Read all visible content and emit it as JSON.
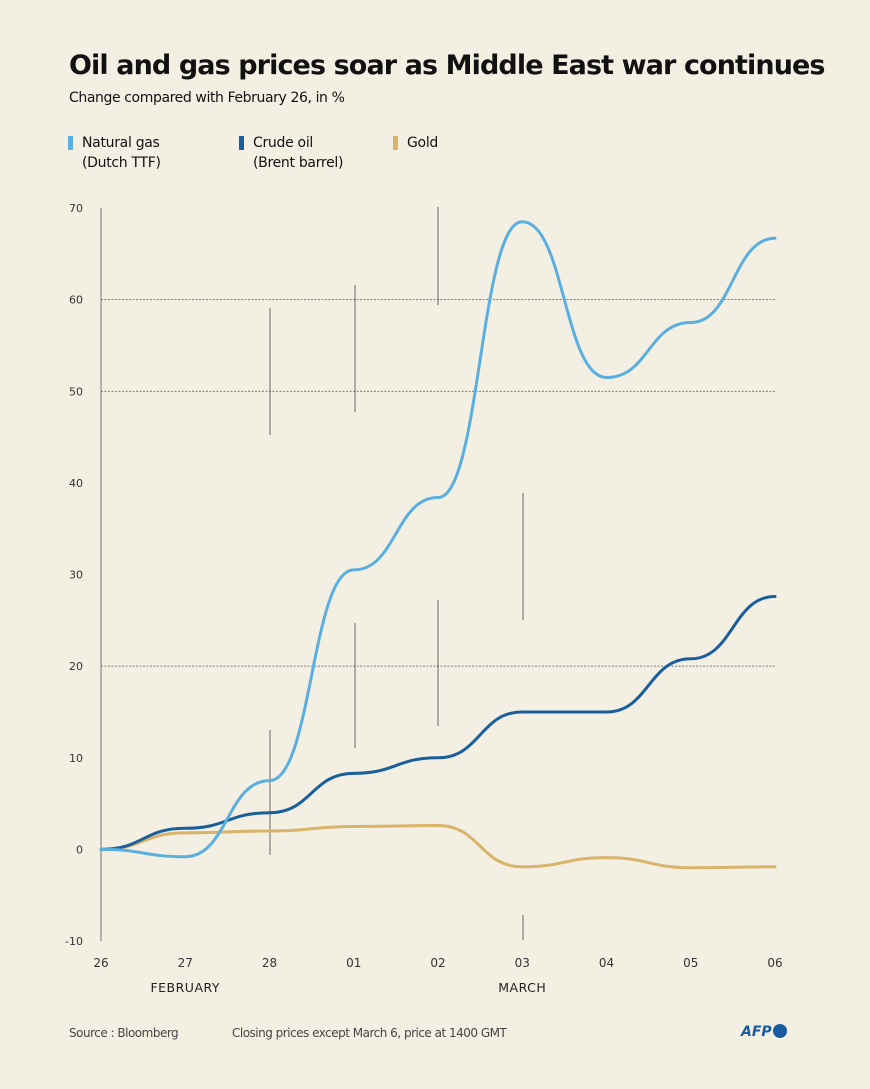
{
  "header": {
    "title": "Oil and gas prices soar as Middle East war continues",
    "subtitle": "Change compared with February 26, in %"
  },
  "footer": {
    "source": "Source : Bloomberg",
    "note": "Closing prices except March 6, price at 1400 GMT",
    "logo": "AFP"
  },
  "chart_data": {
    "type": "line",
    "title": "Oil and gas prices soar as Middle East war continues",
    "subtitle": "Change compared with February 26, in %",
    "x": [
      "26",
      "27",
      "28",
      "01",
      "02",
      "03",
      "04",
      "05",
      "06"
    ],
    "month_labels": [
      {
        "label": "FEBRUARY",
        "at": "27"
      },
      {
        "label": "MARCH",
        "at": "03"
      }
    ],
    "ylim": [
      -10,
      70
    ],
    "yticks": [
      -10,
      0,
      10,
      20,
      30,
      40,
      50,
      60,
      70
    ],
    "gridlines": [
      20,
      50,
      60
    ],
    "legend_position": "top-left",
    "series": [
      {
        "name": "Natural gas (Dutch TTF)",
        "legend_lines": [
          "Natural gas",
          "(Dutch TTF)"
        ],
        "color": "#5aafe0",
        "values": [
          0,
          -0.8,
          7.5,
          30.5,
          38.4,
          68.5,
          51.5,
          57.5,
          66.7
        ]
      },
      {
        "name": "Crude oil (Brent barrel)",
        "legend_lines": [
          "Crude oil",
          "(Brent barrel)"
        ],
        "color": "#1a5e9c",
        "values": [
          0,
          2.3,
          4,
          8.3,
          10,
          15,
          15,
          20.8,
          27.6
        ]
      },
      {
        "name": "Gold",
        "legend_lines": [
          "Gold",
          ""
        ],
        "color": "#d9b36a",
        "values": [
          0,
          1.8,
          2,
          2.5,
          2.6,
          -1.9,
          -0.9,
          -2,
          -1.9
        ]
      }
    ]
  }
}
